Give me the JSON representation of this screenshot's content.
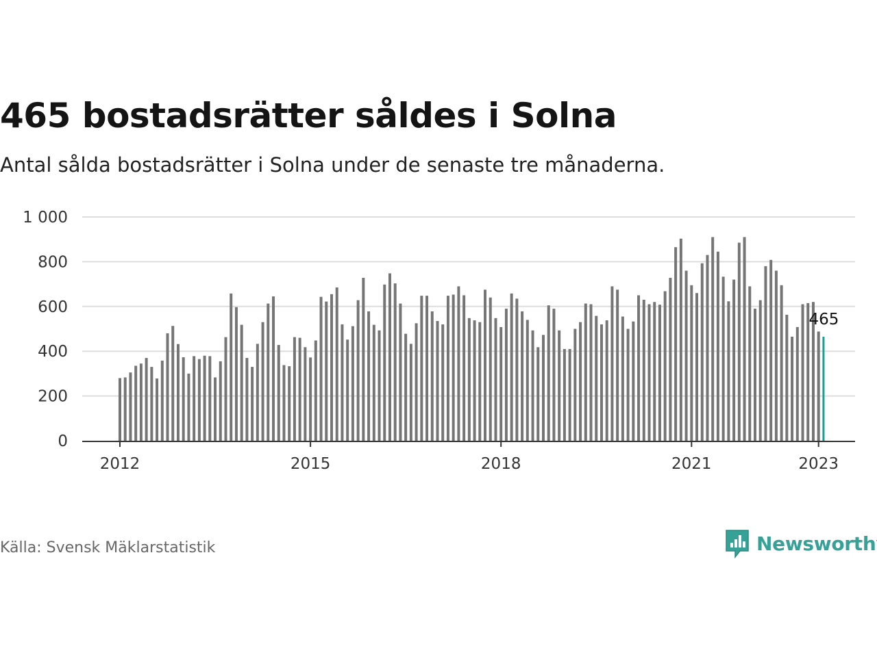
{
  "header": {
    "title": "465 bostadsrätter såldes i Solna",
    "subtitle": "Antal sålda bostadsrätter i Solna under de senaste tre månaderna."
  },
  "footer": {
    "source": "Källa: Svensk Mäklarstatistik",
    "brand": "Newsworthy"
  },
  "colors": {
    "bar": "#757575",
    "highlight": "#1a9e8f",
    "grid": "#dddddd",
    "axis": "#333333",
    "brand": "#35a197"
  },
  "icons": {
    "logo": "bar-chart-speech-bubble-icon"
  },
  "chart_data": {
    "type": "bar",
    "start_year": 2012,
    "start_month": 1,
    "ylim": [
      0,
      1000
    ],
    "yticks": [
      0,
      200,
      400,
      600,
      800,
      1000
    ],
    "ytick_labels": [
      "0",
      "200",
      "400",
      "600",
      "800",
      "1 000"
    ],
    "xticks": [
      "2012",
      "2015",
      "2018",
      "2021",
      "2023"
    ],
    "grid": true,
    "highlight_label": "465",
    "values": [
      280,
      283,
      305,
      335,
      345,
      370,
      330,
      278,
      358,
      480,
      513,
      432,
      373,
      300,
      378,
      365,
      380,
      378,
      283,
      355,
      463,
      658,
      597,
      518,
      370,
      330,
      433,
      530,
      613,
      645,
      428,
      338,
      333,
      463,
      460,
      418,
      372,
      448,
      643,
      622,
      655,
      685,
      520,
      452,
      512,
      628,
      728,
      578,
      518,
      493,
      698,
      748,
      703,
      613,
      478,
      433,
      525,
      648,
      648,
      578,
      535,
      520,
      648,
      653,
      690,
      650,
      548,
      538,
      530,
      675,
      640,
      548,
      508,
      590,
      658,
      635,
      578,
      540,
      493,
      418,
      473,
      605,
      590,
      493,
      410,
      410,
      500,
      530,
      613,
      610,
      558,
      520,
      538,
      690,
      675,
      555,
      500,
      533,
      650,
      630,
      610,
      620,
      608,
      668,
      728,
      865,
      903,
      760,
      695,
      660,
      793,
      830,
      910,
      845,
      733,
      623,
      720,
      885,
      910,
      690,
      590,
      628,
      780,
      808,
      760,
      695,
      563,
      465,
      508,
      610,
      615,
      620,
      488,
      465
    ]
  }
}
